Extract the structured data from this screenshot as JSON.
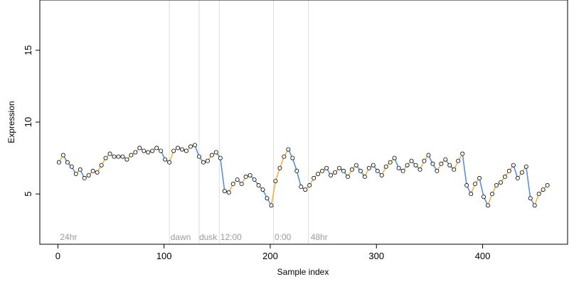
{
  "chart_data": {
    "type": "scatter",
    "title": "",
    "xlabel": "Sample index",
    "ylabel": "Expression",
    "xlim": [
      -17,
      480
    ],
    "ylim": [
      1.5,
      18.5
    ],
    "xticks": [
      0,
      100,
      200,
      300,
      400
    ],
    "yticks": [
      5,
      10,
      15
    ],
    "grid": false,
    "vlines": [
      105,
      133,
      152,
      203,
      236
    ],
    "annotations": [
      {
        "x": 2,
        "label": "24hr"
      },
      {
        "x": 106,
        "label": "dawn"
      },
      {
        "x": 133,
        "label": "dusk"
      },
      {
        "x": 153,
        "label": "12:00"
      },
      {
        "x": 204,
        "label": "0:00"
      },
      {
        "x": 238,
        "label": "48hr"
      }
    ],
    "colors": {
      "line": "#aaaaaa",
      "up": "#f5a623",
      "down": "#3b7dd8",
      "vline": "#dddddd",
      "annot": "#9a9a9a",
      "point_fill": "#ffffff",
      "point_stroke": "#000000"
    },
    "series": [
      {
        "x": [
          1,
          5,
          9,
          13,
          17,
          21,
          25,
          29,
          33,
          37,
          41,
          45,
          49,
          53,
          57,
          61,
          65,
          69,
          73,
          77,
          81,
          85,
          89,
          93,
          97,
          101,
          105,
          109,
          113,
          117,
          121,
          125,
          129,
          133,
          137,
          141,
          145,
          149,
          153,
          157,
          161,
          165,
          169,
          173,
          177,
          181,
          185,
          189,
          193,
          197,
          201,
          205,
          209,
          213,
          217,
          221,
          225,
          229,
          233,
          237,
          241,
          245,
          249,
          253,
          257,
          261,
          265,
          269,
          273,
          277,
          281,
          285,
          289,
          293,
          297,
          301,
          305,
          309,
          313,
          317,
          321,
          325,
          329,
          333,
          337,
          341,
          345,
          349,
          353,
          357,
          361,
          365,
          369,
          373,
          377,
          381,
          385,
          389,
          393,
          397,
          401,
          405,
          409,
          413,
          417,
          421,
          425,
          429,
          433,
          437,
          441,
          445,
          449,
          453,
          457,
          461
        ],
        "y": [
          7.2,
          7.7,
          7.2,
          6.9,
          6.4,
          6.7,
          6.1,
          6.3,
          6.6,
          6.5,
          7.0,
          7.5,
          7.8,
          7.6,
          7.6,
          7.6,
          7.4,
          7.7,
          7.9,
          8.2,
          8.0,
          7.9,
          8.0,
          8.2,
          8.0,
          7.4,
          7.2,
          8.0,
          8.2,
          8.1,
          8.0,
          8.3,
          8.4,
          7.6,
          7.2,
          7.3,
          7.7,
          7.9,
          7.5,
          5.2,
          5.1,
          5.7,
          6.0,
          5.7,
          6.2,
          6.3,
          6.0,
          5.6,
          5.3,
          4.7,
          4.2,
          5.9,
          6.8,
          7.6,
          8.1,
          7.5,
          6.6,
          5.5,
          5.3,
          5.6,
          6.1,
          6.4,
          6.6,
          6.8,
          6.3,
          6.5,
          6.8,
          6.6,
          6.2,
          6.7,
          7.0,
          6.6,
          6.2,
          6.8,
          7.0,
          6.6,
          6.3,
          6.9,
          7.2,
          7.5,
          6.8,
          6.6,
          7.0,
          7.3,
          7.0,
          6.7,
          7.3,
          7.7,
          7.1,
          6.6,
          7.1,
          7.4,
          7.0,
          6.7,
          7.3,
          7.8,
          5.6,
          5.0,
          5.7,
          6.1,
          4.8,
          4.2,
          5.0,
          5.6,
          5.8,
          6.2,
          6.6,
          7.0,
          6.1,
          6.5,
          6.9,
          4.7,
          4.2,
          5.0,
          5.3,
          5.6
        ]
      }
    ]
  }
}
